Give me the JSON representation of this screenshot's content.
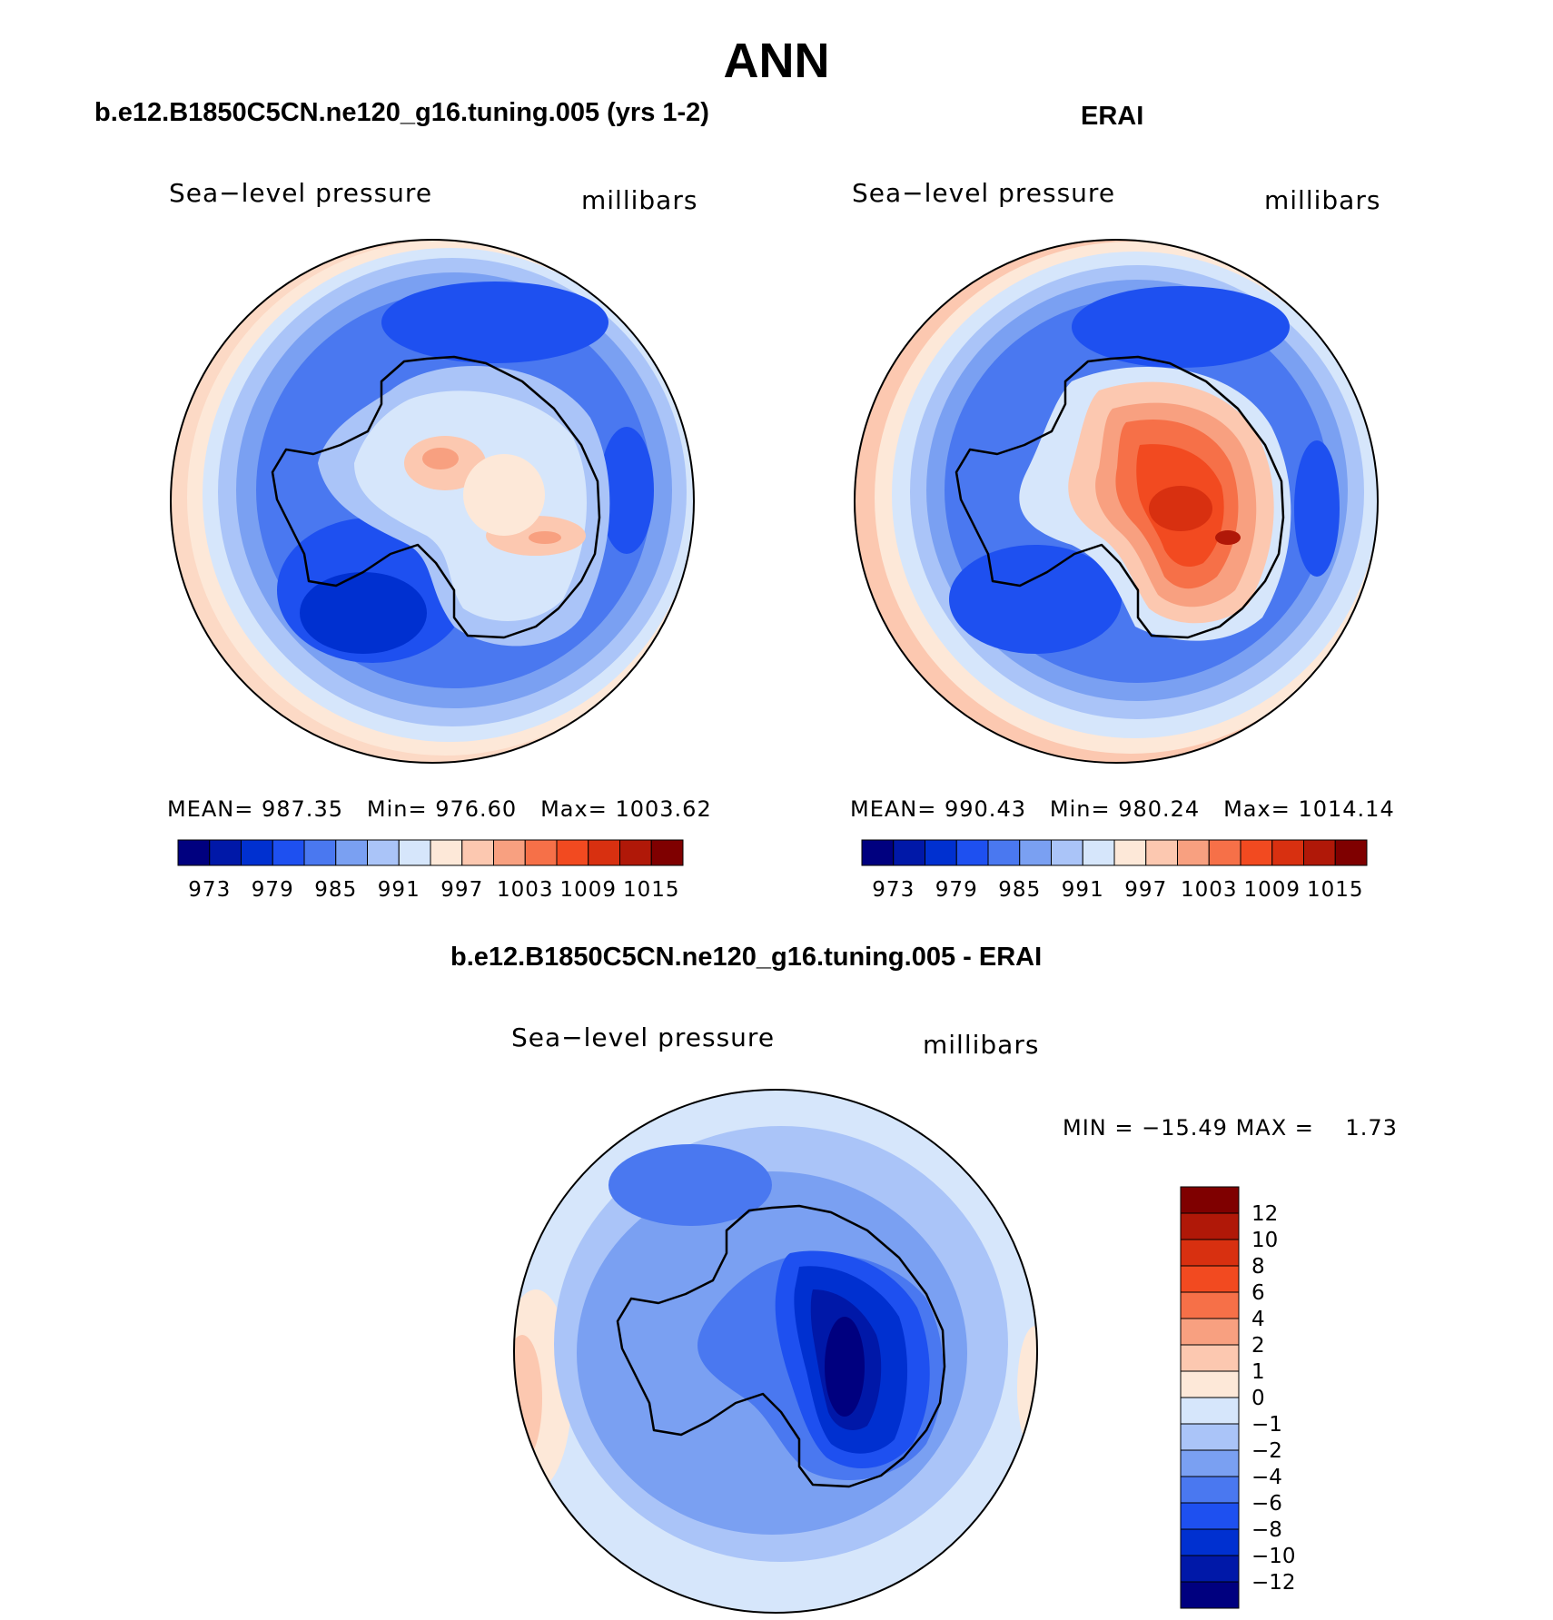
{
  "figure": {
    "season": "ANN"
  },
  "panels": [
    {
      "title": "b.e12.B1850C5CN.ne120_g16.tuning.005 (yrs 1-2)",
      "variable": "Sea−level pressure",
      "units": "millibars",
      "stats": {
        "mean_label": "MEAN=",
        "mean": "987.35",
        "min_label": "Min=",
        "min": "976.60",
        "max_label": "Max=",
        "max": "1003.62"
      }
    },
    {
      "title": "ERAI",
      "variable": "Sea−level pressure",
      "units": "millibars",
      "stats": {
        "mean_label": "MEAN=",
        "mean": "990.43",
        "min_label": "Min=",
        "min": "980.24",
        "max_label": "Max=",
        "max": "1014.14"
      }
    },
    {
      "title": "b.e12.B1850C5CN.ne120_g16.tuning.005 - ERAI",
      "variable": "Sea−level pressure",
      "units": "millibars",
      "stats": {
        "min_label": "MIN =",
        "min": "−15.49",
        "max_label": "MAX =",
        "max": "1.73"
      }
    }
  ],
  "colorbars": {
    "absolute": {
      "colors": [
        "#00007f",
        "#0018a8",
        "#0030d0",
        "#1e50f0",
        "#4a78f0",
        "#7aa0f2",
        "#aac4f8",
        "#d6e6fb",
        "#fde8d8",
        "#fcc8b0",
        "#f8a080",
        "#f67048",
        "#f24a20",
        "#d83010",
        "#b01808",
        "#7f0000"
      ],
      "tick_labels": [
        "973",
        "979",
        "985",
        "991",
        "997",
        "1003",
        "1009",
        "1015"
      ]
    },
    "difference": {
      "colors": [
        "#7f0000",
        "#b01808",
        "#d83010",
        "#f24a20",
        "#f67048",
        "#f8a080",
        "#fcc8b0",
        "#fde8d8",
        "#d6e6fb",
        "#aac4f8",
        "#7aa0f2",
        "#4a78f0",
        "#1e50f0",
        "#0030d0",
        "#0018a8",
        "#00007f"
      ],
      "tick_labels": [
        "12",
        "10",
        "8",
        "6",
        "4",
        "2",
        "1",
        "0",
        "−1",
        "−2",
        "−4",
        "−6",
        "−8",
        "−10",
        "−12"
      ]
    }
  }
}
